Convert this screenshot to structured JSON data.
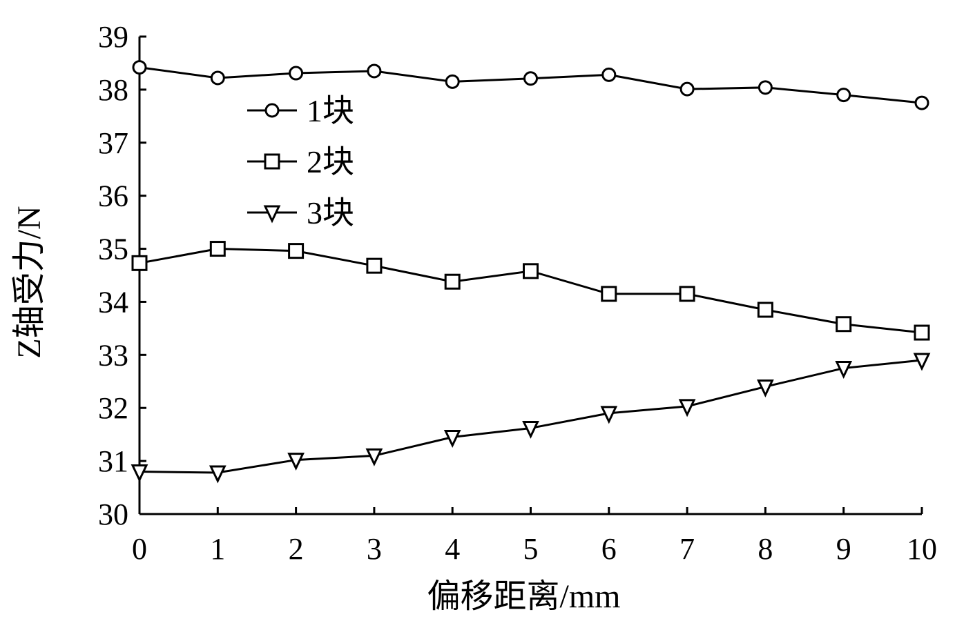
{
  "chart_data": {
    "type": "line",
    "title": "",
    "xlabel": "偏移距离/mm",
    "ylabel": "Z轴受力/N",
    "xlim": [
      0,
      10
    ],
    "ylim": [
      30,
      39
    ],
    "x": [
      0,
      1,
      2,
      3,
      4,
      5,
      6,
      7,
      8,
      9,
      10
    ],
    "xticks": [
      "0",
      "1",
      "2",
      "3",
      "4",
      "5",
      "6",
      "7",
      "8",
      "9",
      "10"
    ],
    "yticks": [
      "30",
      "31",
      "32",
      "33",
      "34",
      "35",
      "36",
      "37",
      "38",
      "39"
    ],
    "grid": false,
    "legend_position": "top-left",
    "series": [
      {
        "name": "1块",
        "marker": "circle",
        "color": "#000000",
        "values": [
          38.42,
          38.22,
          38.31,
          38.35,
          38.15,
          38.21,
          38.28,
          38.01,
          38.04,
          37.9,
          37.75
        ]
      },
      {
        "name": "2块",
        "marker": "square",
        "color": "#000000",
        "values": [
          34.73,
          35.0,
          34.96,
          34.68,
          34.38,
          34.58,
          34.15,
          34.15,
          33.85,
          33.58,
          33.42
        ]
      },
      {
        "name": "3块",
        "marker": "triangle-down",
        "color": "#000000",
        "values": [
          30.8,
          30.78,
          31.02,
          31.1,
          31.45,
          31.62,
          31.9,
          32.03,
          32.4,
          32.75,
          32.9
        ]
      }
    ]
  }
}
